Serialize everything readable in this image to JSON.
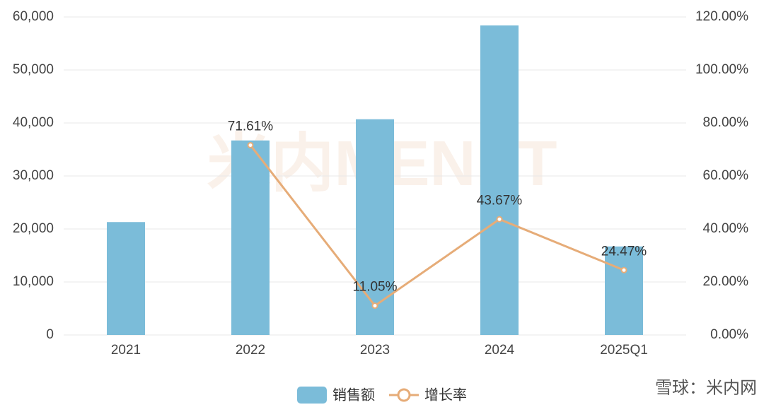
{
  "chart_data": {
    "type": "bar",
    "categories": [
      "2021",
      "2022",
      "2023",
      "2024",
      "2025Q1"
    ],
    "series": [
      {
        "name": "销售额",
        "type": "bar",
        "color": "#7bbcd9",
        "values": [
          21300,
          36700,
          40700,
          58400,
          16700
        ]
      },
      {
        "name": "增长率",
        "type": "line",
        "axis": "y2",
        "color": "#e6ac78",
        "values": [
          null,
          71.61,
          11.05,
          43.67,
          24.47
        ],
        "value_labels": [
          null,
          "71.61%",
          "11.05%",
          "43.67%",
          "24.47%"
        ]
      }
    ],
    "ylim": [
      0,
      60000
    ],
    "yticks": [
      0,
      {
        "value": 10000,
        "label": "10,000"
      },
      {
        "value": 20000,
        "label": "20,000"
      },
      {
        "value": 30000,
        "label": "30,000"
      },
      {
        "value": 40000,
        "label": "40,000"
      },
      {
        "value": 50000,
        "label": "50,000"
      },
      {
        "value": 60000,
        "label": "60,000"
      }
    ],
    "y2lim": [
      0,
      120
    ],
    "y2ticks": [
      {
        "value": 0,
        "label": "0.00%"
      },
      {
        "value": 20,
        "label": "20.00%"
      },
      {
        "value": 40,
        "label": "40.00%"
      },
      {
        "value": 60,
        "label": "60.00%"
      },
      {
        "value": 80,
        "label": "80.00%"
      },
      {
        "value": 100,
        "label": "100.00%"
      },
      {
        "value": 120,
        "label": "120.00%"
      }
    ],
    "grid": true,
    "legend": "bottom",
    "watermark": "米内MENET",
    "source": "雪球：米内网"
  }
}
